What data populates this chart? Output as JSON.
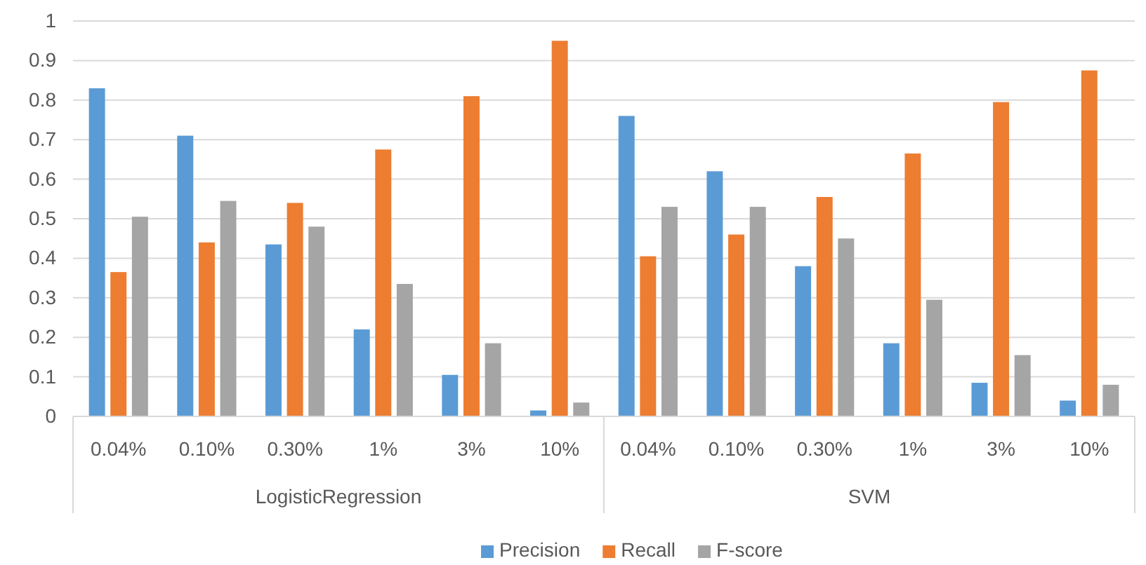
{
  "chart_data": {
    "type": "bar",
    "categories": [
      "0.04%",
      "0.10%",
      "0.30%",
      "1%",
      "3%",
      "10%",
      "0.04%",
      "0.10%",
      "0.30%",
      "1%",
      "3%",
      "10%"
    ],
    "series": [
      {
        "name": "Precision",
        "color": "#5b9bd5",
        "values": [
          0.83,
          0.71,
          0.435,
          0.22,
          0.105,
          0.015,
          0.76,
          0.62,
          0.38,
          0.185,
          0.085,
          0.04
        ]
      },
      {
        "name": "Recall",
        "color": "#ed7d31",
        "values": [
          0.365,
          0.44,
          0.54,
          0.675,
          0.81,
          0.95,
          0.405,
          0.46,
          0.555,
          0.665,
          0.795,
          0.875
        ]
      },
      {
        "name": "F-score",
        "color": "#a5a5a5",
        "values": [
          0.505,
          0.545,
          0.48,
          0.335,
          0.185,
          0.035,
          0.53,
          0.53,
          0.45,
          0.295,
          0.155,
          0.08
        ]
      }
    ],
    "annotations": [
      "LogisticRegression",
      "SVM"
    ],
    "ylim": [
      0,
      1
    ],
    "yticks": [
      0,
      0.1,
      0.2,
      0.3,
      0.4,
      0.5,
      0.6,
      0.7,
      0.8,
      0.9,
      1
    ],
    "grid": "y",
    "legend": "bottom"
  }
}
